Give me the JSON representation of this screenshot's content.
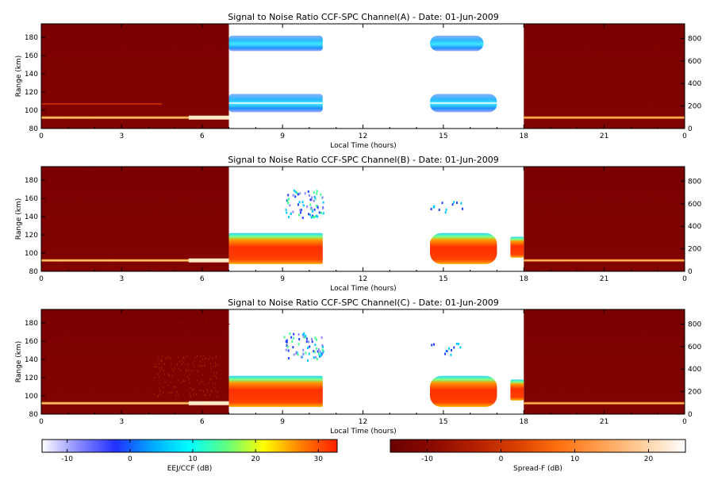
{
  "chart_data": [
    {
      "type": "heatmap",
      "title": "Signal to Noise Ratio CCF-SPC Channel(A) - Date: 01-Jun-2009",
      "xlabel": "Local Time (hours)",
      "ylabel": "Range (km)",
      "xlim": [
        0,
        24
      ],
      "ylim": [
        80,
        195
      ],
      "y2lim": [
        0,
        930
      ],
      "x_ticks": [
        "0",
        "3",
        "6",
        "9",
        "12",
        "15",
        "18",
        "21",
        "0"
      ],
      "y_ticks": [
        "80",
        "100",
        "120",
        "140",
        "160",
        "180"
      ],
      "y2_ticks": [
        "0",
        "200",
        "400",
        "600",
        "800"
      ],
      "colorscale_used": [
        "Spread-F (dB) for 0-7 h and 18-24 h",
        "EEJ/CCF (dB) for 7-18 h"
      ],
      "features": [
        {
          "name": "night layer",
          "x": [
            0,
            7
          ],
          "y": 92,
          "snr_db": 22
        },
        {
          "name": "night layer",
          "x": [
            18,
            24
          ],
          "y": 92,
          "snr_db": 12
        },
        {
          "name": "faint night layer",
          "x": [
            0,
            4.5
          ],
          "y": 107,
          "snr_db": 3
        },
        {
          "name": "upper echo",
          "x": [
            7,
            10.5
          ],
          "y": [
            165,
            182
          ],
          "snr_db": [
            -6,
            2
          ]
        },
        {
          "name": "lower echo",
          "x": [
            7,
            10.5
          ],
          "y": [
            98,
            118
          ],
          "snr_db": [
            -6,
            2
          ]
        },
        {
          "name": "upper echo",
          "x": [
            14.5,
            16.5
          ],
          "y": [
            165,
            182
          ],
          "snr_db": [
            -6,
            2
          ]
        },
        {
          "name": "lower echo",
          "x": [
            14.5,
            17
          ],
          "y": [
            98,
            118
          ],
          "snr_db": [
            -6,
            2
          ]
        }
      ]
    },
    {
      "type": "heatmap",
      "title": "Signal to Noise Ratio CCF-SPC Channel(B) - Date: 01-Jun-2009",
      "xlabel": "Local Time (hours)",
      "ylabel": "Range (km)",
      "xlim": [
        0,
        24
      ],
      "ylim": [
        80,
        195
      ],
      "y2lim": [
        0,
        930
      ],
      "x_ticks": [
        "0",
        "3",
        "6",
        "9",
        "12",
        "15",
        "18",
        "21",
        "0"
      ],
      "y_ticks": [
        "80",
        "100",
        "120",
        "140",
        "160",
        "180"
      ],
      "y2_ticks": [
        "0",
        "200",
        "400",
        "600",
        "800"
      ],
      "colorscale_used": [
        "Spread-F (dB) for 0-7 h and 18-24 h",
        "EEJ/CCF (dB) for 7-18 h"
      ],
      "features": [
        {
          "name": "night layer",
          "x": [
            0,
            7
          ],
          "y": 92,
          "snr_db": 22
        },
        {
          "name": "night layer",
          "x": [
            18,
            24
          ],
          "y": 92,
          "snr_db": 12
        },
        {
          "name": "EEJ echo",
          "x": [
            7,
            10.5
          ],
          "y": [
            88,
            122
          ],
          "snr_db": [
            0,
            30
          ]
        },
        {
          "name": "EEJ echo",
          "x": [
            14.5,
            17
          ],
          "y": [
            88,
            122
          ],
          "snr_db": [
            0,
            30
          ]
        },
        {
          "name": "EEJ echo",
          "x": [
            17.5,
            18
          ],
          "y": [
            95,
            118
          ],
          "snr_db": [
            5,
            30
          ]
        },
        {
          "name": "scattered echoes",
          "x": [
            9,
            10.5
          ],
          "y": [
            140,
            170
          ],
          "snr_db": [
            -10,
            20
          ]
        }
      ]
    },
    {
      "type": "heatmap",
      "title": "Signal to Noise Ratio CCF-SPC Channel(C) - Date: 01-Jun-2009",
      "xlabel": "Local Time (hours)",
      "ylabel": "Range (km)",
      "xlim": [
        0,
        24
      ],
      "ylim": [
        80,
        195
      ],
      "y2lim": [
        0,
        930
      ],
      "x_ticks": [
        "0",
        "3",
        "6",
        "9",
        "12",
        "15",
        "18",
        "21",
        "0"
      ],
      "y_ticks": [
        "80",
        "100",
        "120",
        "140",
        "160",
        "180"
      ],
      "y2_ticks": [
        "0",
        "200",
        "400",
        "600",
        "800"
      ],
      "colorscale_used": [
        "Spread-F (dB) for 0-7 h and 18-24 h",
        "EEJ/CCF (dB) for 7-18 h"
      ],
      "features": [
        {
          "name": "night layer",
          "x": [
            0,
            7
          ],
          "y": 92,
          "snr_db": 22
        },
        {
          "name": "night layer",
          "x": [
            18,
            24
          ],
          "y": 92,
          "snr_db": 12
        },
        {
          "name": "EEJ echo",
          "x": [
            7,
            10.5
          ],
          "y": [
            88,
            122
          ],
          "snr_db": [
            0,
            30
          ]
        },
        {
          "name": "EEJ echo",
          "x": [
            14.5,
            17
          ],
          "y": [
            88,
            122
          ],
          "snr_db": [
            0,
            30
          ]
        },
        {
          "name": "EEJ echo",
          "x": [
            17.5,
            18
          ],
          "y": [
            95,
            118
          ],
          "snr_db": [
            5,
            30
          ]
        },
        {
          "name": "scattered echoes",
          "x": [
            9,
            10.5
          ],
          "y": [
            140,
            170
          ],
          "snr_db": [
            -10,
            20
          ]
        }
      ]
    }
  ],
  "colorbars": [
    {
      "label": "EEJ/CCF (dB)",
      "range": [
        -14,
        33
      ],
      "ticks": [
        "-10",
        "0",
        "10",
        "20",
        "30"
      ],
      "colors": [
        "#ffffff",
        "#8888ff",
        "#2030ff",
        "#00aaff",
        "#00ffff",
        "#60ff80",
        "#ffff00",
        "#ff8000",
        "#ff2000"
      ]
    },
    {
      "label": "Spread-F (dB)",
      "range": [
        -15,
        25
      ],
      "ticks": [
        "-10",
        "0",
        "10",
        "20"
      ],
      "colors": [
        "#6a0000",
        "#8a0a00",
        "#b42000",
        "#d84000",
        "#ff7010",
        "#ffa050",
        "#ffd0a0",
        "#ffffff"
      ]
    }
  ]
}
